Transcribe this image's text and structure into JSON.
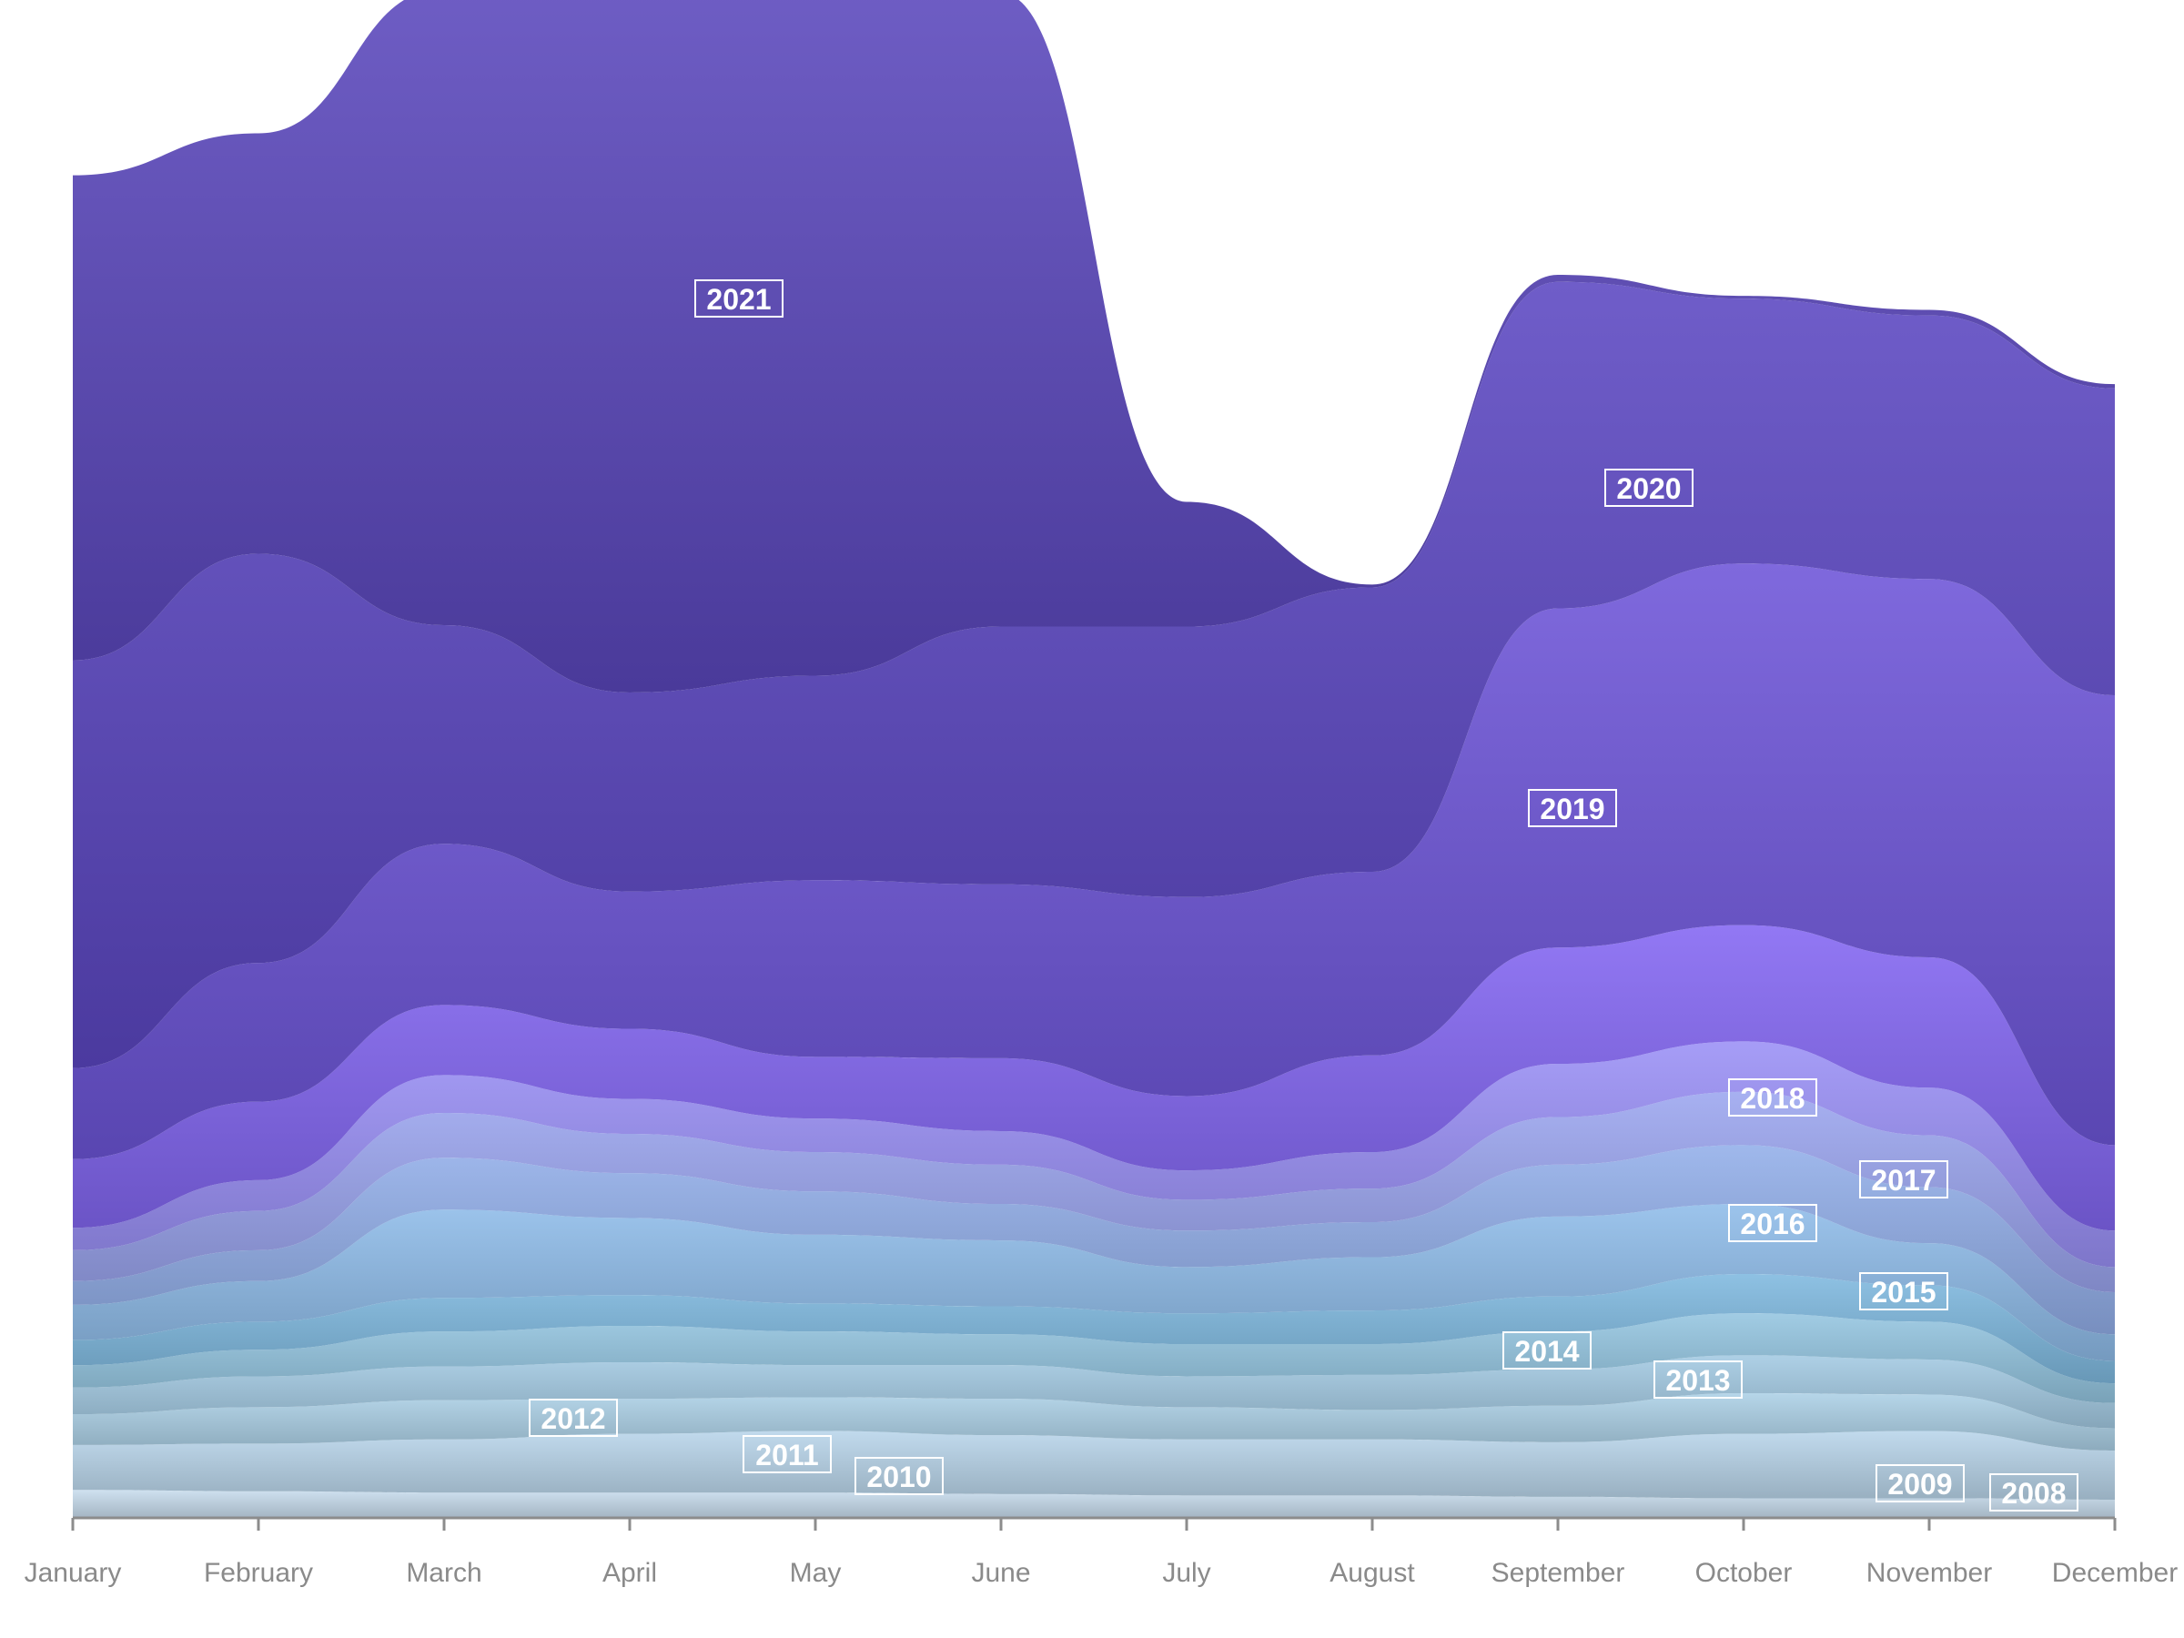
{
  "chart_data": {
    "type": "area",
    "categories": [
      "January",
      "February",
      "March",
      "April",
      "May",
      "June",
      "July",
      "August",
      "September",
      "October",
      "November",
      "December"
    ],
    "ylim": [
      0,
      100
    ],
    "grid": false,
    "legend": "inline labels",
    "series": [
      {
        "name": "2008",
        "color": "#c8ddee",
        "values": [
          2.0,
          1.9,
          1.8,
          1.8,
          1.8,
          1.7,
          1.6,
          1.6,
          1.5,
          1.4,
          1.4,
          1.3
        ]
      },
      {
        "name": "2009",
        "color": "#b9d5ea",
        "values": [
          3.2,
          3.4,
          3.8,
          4.2,
          4.4,
          4.2,
          4.0,
          4.0,
          3.9,
          4.6,
          4.8,
          3.5
        ]
      },
      {
        "name": "2010",
        "color": "#acd0e6",
        "values": [
          2.2,
          2.6,
          2.8,
          2.5,
          2.4,
          2.6,
          2.3,
          2.1,
          2.6,
          2.9,
          2.6,
          1.6
        ]
      },
      {
        "name": "2011",
        "color": "#a3cae3",
        "values": [
          1.9,
          2.2,
          2.4,
          2.6,
          2.3,
          2.4,
          2.2,
          2.5,
          2.6,
          2.7,
          2.5,
          1.8
        ]
      },
      {
        "name": "2012",
        "color": "#94c5e0",
        "values": [
          1.6,
          1.9,
          2.5,
          2.6,
          2.4,
          2.2,
          2.3,
          2.2,
          2.7,
          3.0,
          2.7,
          1.4
        ]
      },
      {
        "name": "2013",
        "color": "#7fb9df",
        "values": [
          1.8,
          2.0,
          2.4,
          2.2,
          2.0,
          2.0,
          2.2,
          2.4,
          2.5,
          2.8,
          2.6,
          1.6
        ]
      },
      {
        "name": "2014",
        "color": "#8fbce9",
        "values": [
          2.5,
          2.9,
          6.3,
          5.5,
          4.9,
          4.7,
          3.3,
          3.8,
          5.7,
          5.0,
          3.0,
          1.9
        ]
      },
      {
        "name": "2015",
        "color": "#92aee9",
        "values": [
          1.7,
          2.2,
          3.7,
          3.2,
          3.1,
          2.6,
          2.6,
          2.5,
          3.7,
          4.2,
          4.0,
          3.0
        ]
      },
      {
        "name": "2016",
        "color": "#9ba5ef",
        "values": [
          2.2,
          2.8,
          3.2,
          2.8,
          2.8,
          2.8,
          2.2,
          2.4,
          3.4,
          3.8,
          3.7,
          1.8
        ]
      },
      {
        "name": "2017",
        "color": "#9a90f6",
        "values": [
          1.6,
          2.2,
          2.7,
          2.5,
          2.4,
          2.4,
          2.1,
          2.6,
          3.8,
          3.6,
          3.4,
          2.6
        ]
      },
      {
        "name": "2018",
        "color": "#8366f2",
        "values": [
          4.9,
          5.6,
          5.0,
          5.0,
          4.4,
          5.2,
          5.3,
          6.9,
          8.3,
          8.3,
          9.3,
          6.1
        ]
      },
      {
        "name": "2019",
        "color": "#6d55d8",
        "values": [
          6.5,
          9.9,
          11.5,
          9.8,
          12.6,
          12.4,
          14.2,
          13.1,
          24.2,
          25.8,
          27.0,
          32.1
        ]
      },
      {
        "name": "2020",
        "color": "#5b47c2",
        "values": [
          29.1,
          29.2,
          15.6,
          14.2,
          14.6,
          18.4,
          19.3,
          20.3,
          23.3,
          18.9,
          18.8,
          21.9
        ]
      },
      {
        "name": "2021",
        "color": "#5a47bc",
        "values": [
          34.6,
          30.0,
          45.4,
          50.1,
          48.8,
          45.2,
          8.9,
          0.2,
          0.5,
          0.2,
          0.4,
          0.3
        ]
      }
    ],
    "labels": [
      {
        "series": "2021",
        "text": "2021"
      },
      {
        "series": "2020",
        "text": "2020"
      },
      {
        "series": "2019",
        "text": "2019"
      },
      {
        "series": "2018",
        "text": "2018"
      },
      {
        "series": "2017",
        "text": "2017"
      },
      {
        "series": "2016",
        "text": "2016"
      },
      {
        "series": "2015",
        "text": "2015"
      },
      {
        "series": "2014",
        "text": "2014"
      },
      {
        "series": "2013",
        "text": "2013"
      },
      {
        "series": "2012",
        "text": "2012"
      },
      {
        "series": "2011",
        "text": "2011"
      },
      {
        "series": "2010",
        "text": "2010"
      },
      {
        "series": "2009",
        "text": "2009"
      },
      {
        "series": "2008",
        "text": "2008"
      }
    ]
  }
}
